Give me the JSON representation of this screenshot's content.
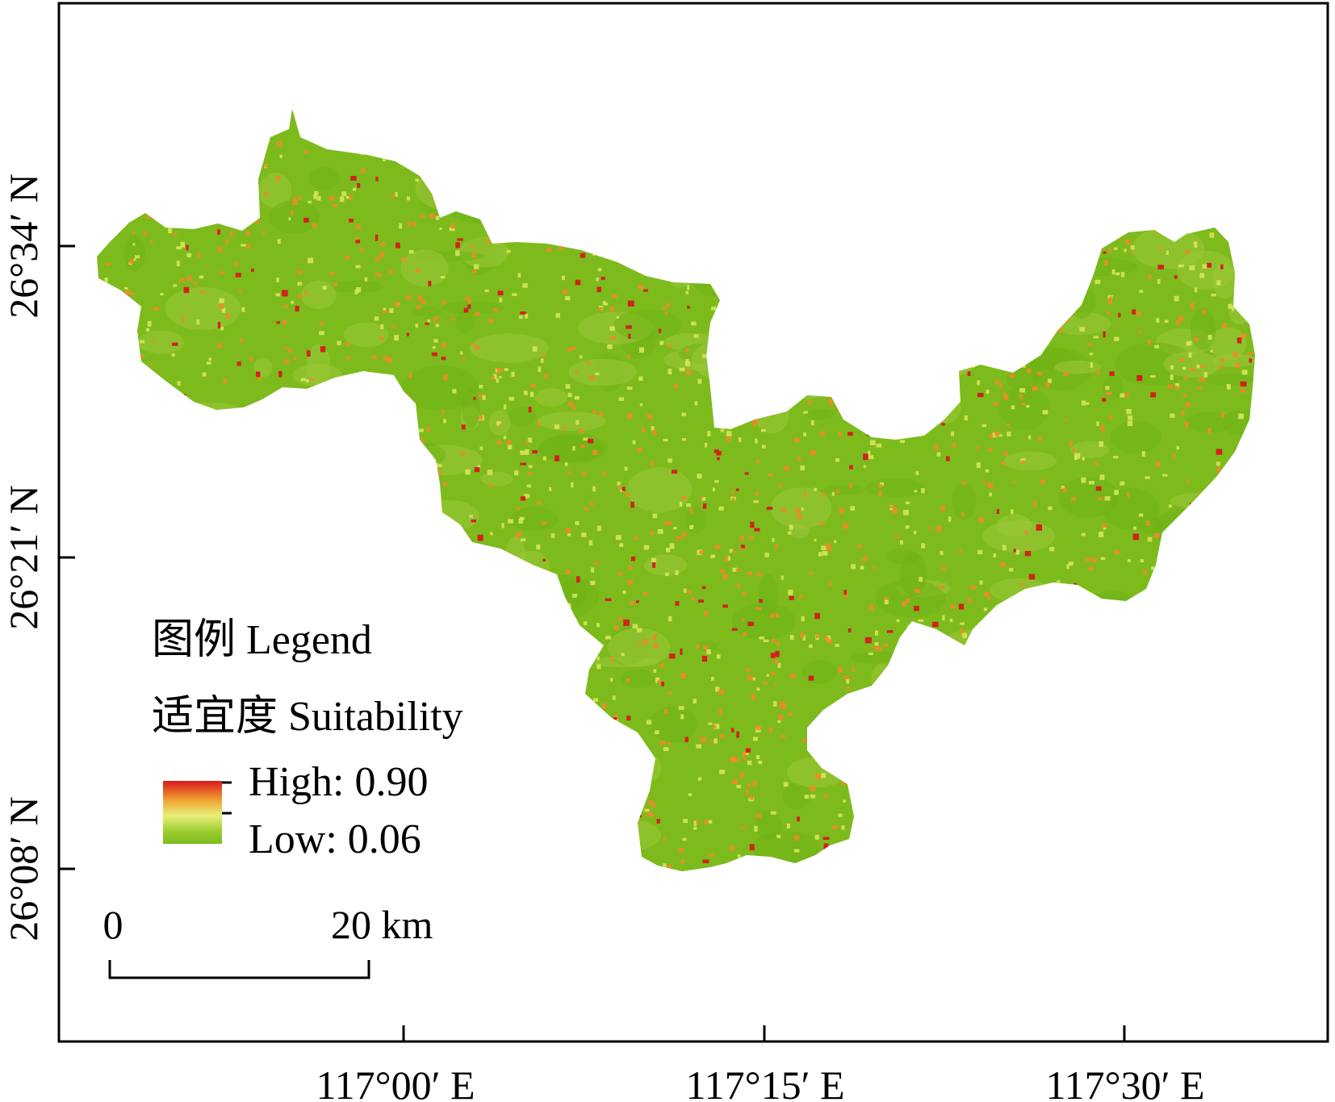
{
  "map": {
    "lat_labels": [
      "26°34′ N",
      "26°21′ N",
      "26°08′ N"
    ],
    "lon_labels": [
      "117°00′ E",
      "117°15′ E",
      "117°30′ E"
    ]
  },
  "legend": {
    "title": "图例 Legend",
    "subtitle": "适宜度 Suitability",
    "high_label": "High: 0.90",
    "low_label": "Low: 0.06",
    "high_value": 0.9,
    "low_value": 0.06,
    "colors": {
      "high": "#d7191c",
      "mid_high": "#f0a030",
      "mid": "#e8f07a",
      "low": "#7cbc20"
    }
  },
  "scale_bar": {
    "start_label": "0",
    "end_label": "20 km"
  },
  "colors": {
    "frame": "#000000",
    "background": "#ffffff",
    "region_base": "#7dbb1c",
    "suitability_high": "#d7191c",
    "suitability_medium": "#ef8a2a",
    "suitability_low_medium": "#d7e45a"
  }
}
